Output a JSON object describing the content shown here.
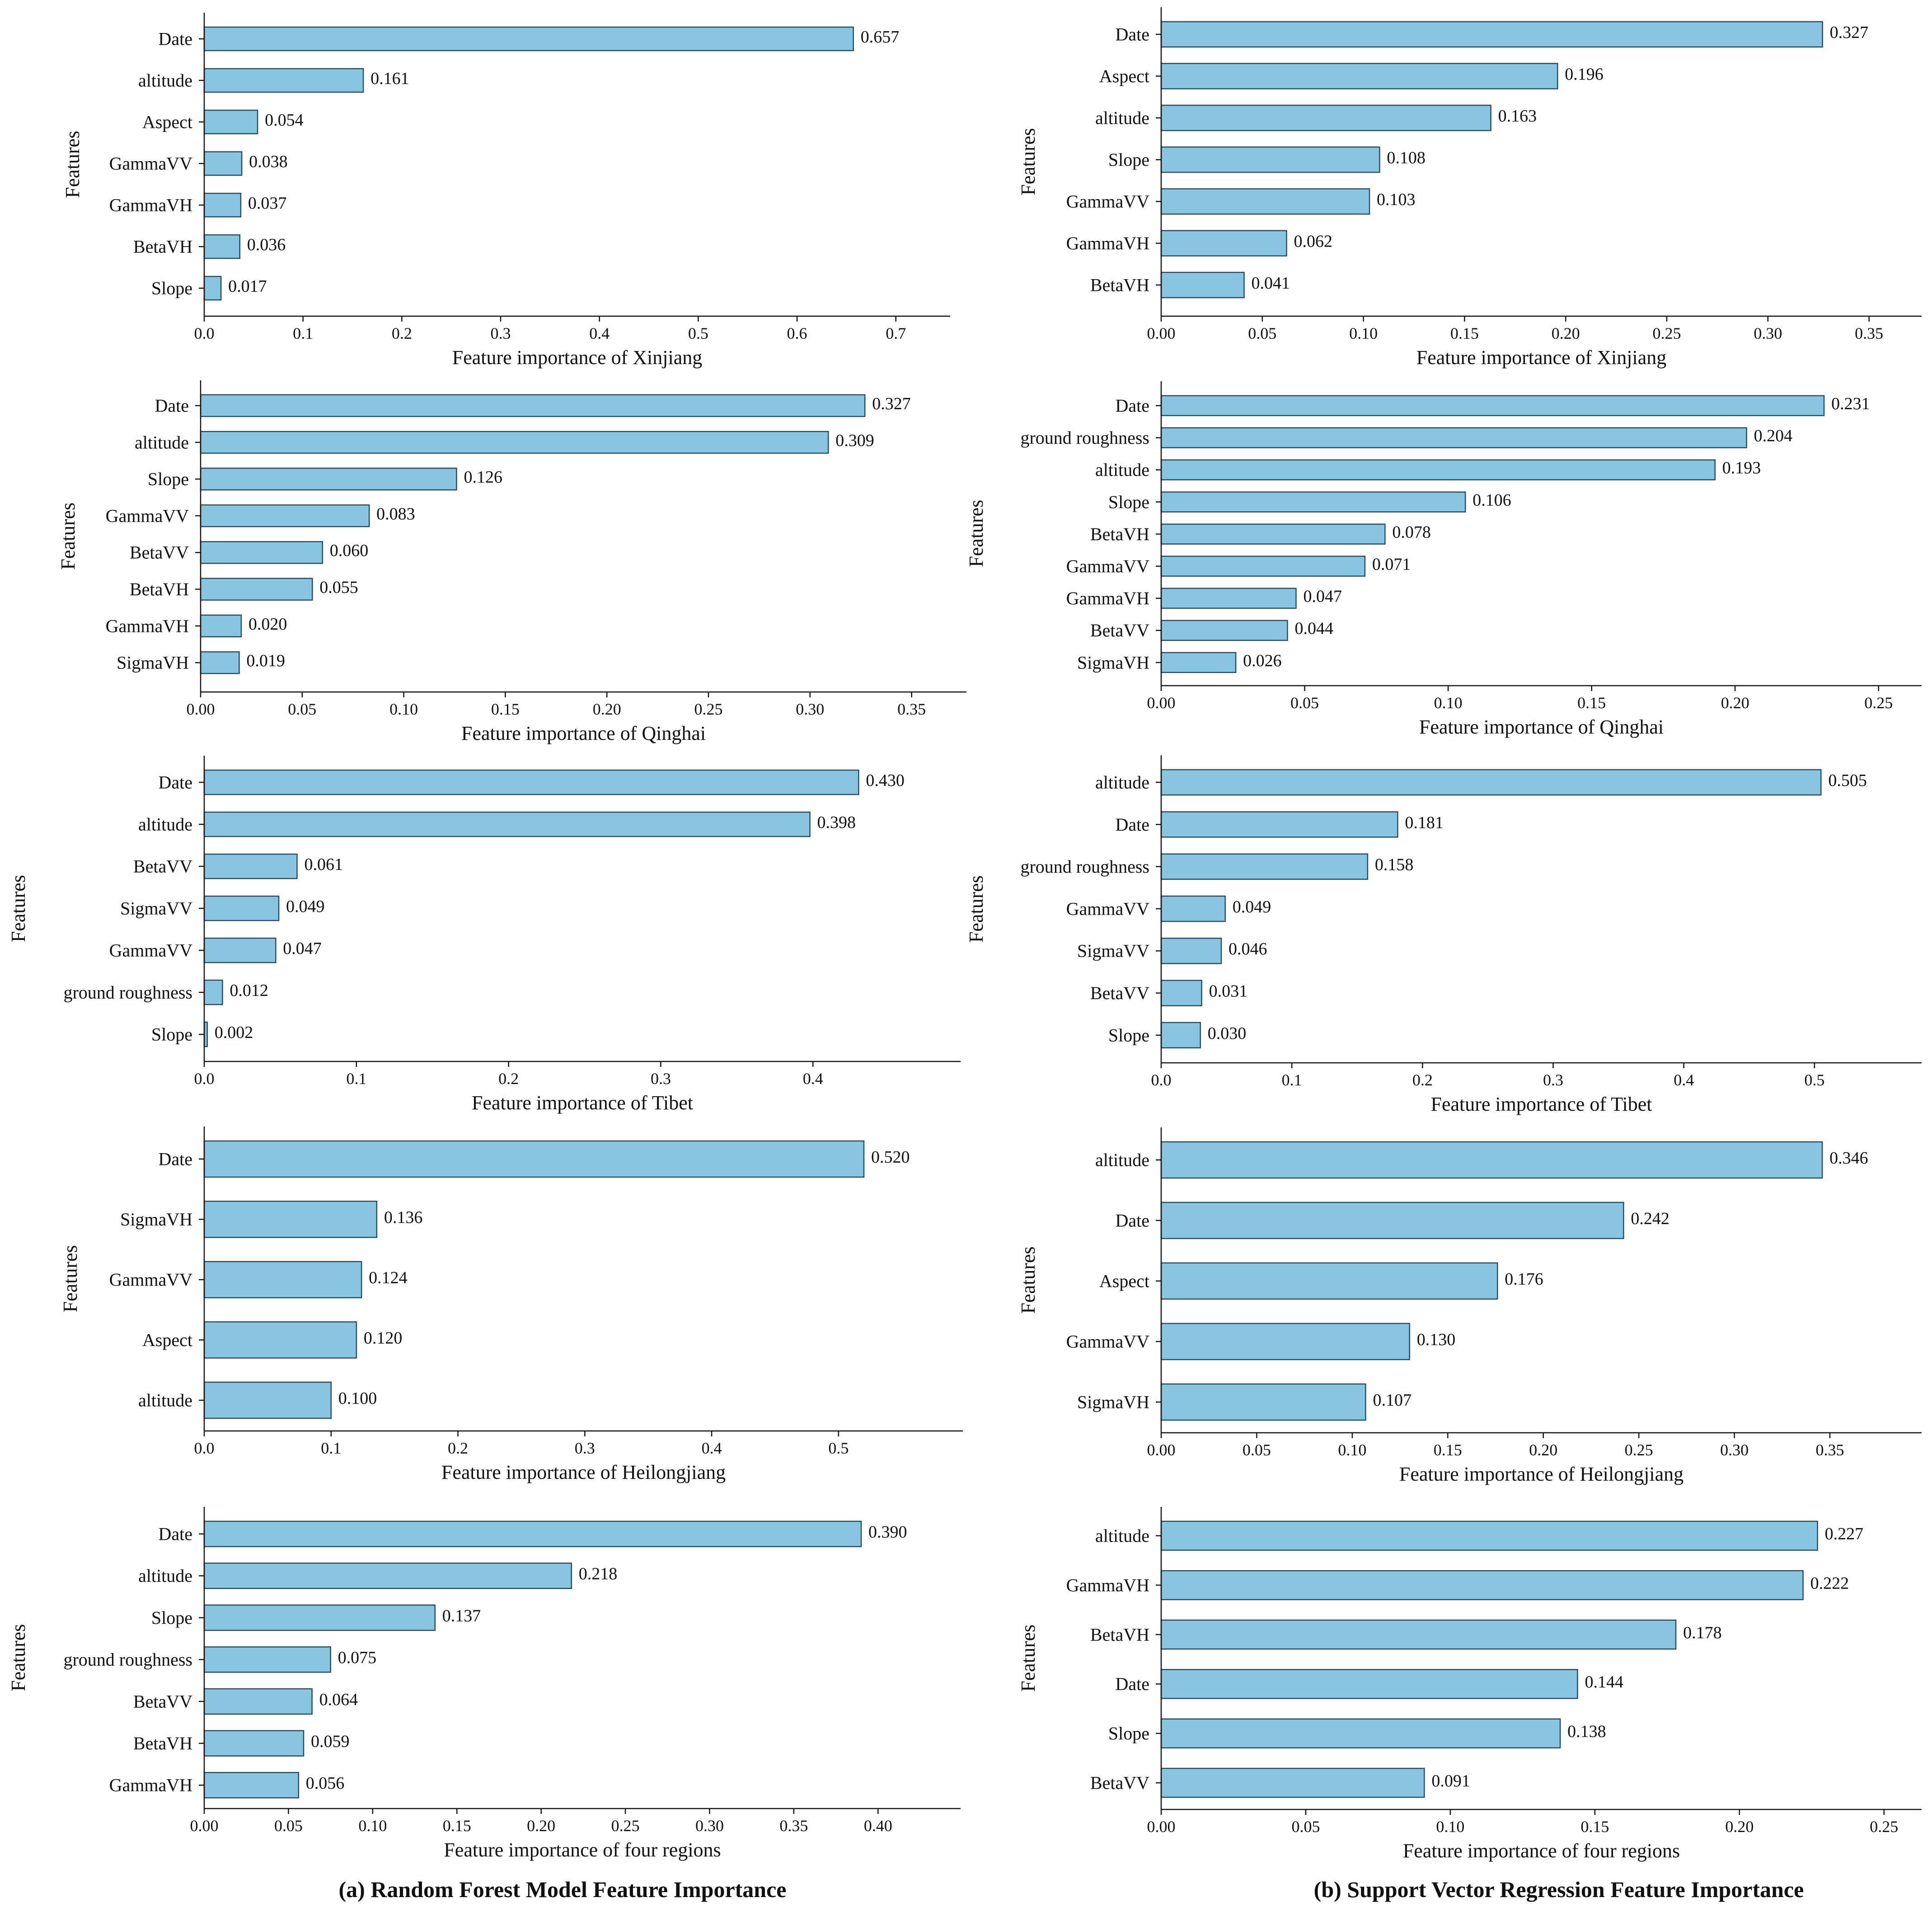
{
  "figure": {
    "caption_a": "(a) Random Forest Model Feature Importance",
    "caption_b": "(b) Support Vector Regression Feature Importance",
    "bar_color": "#87c5e3",
    "bar_edge_color": "#2b4a5c",
    "ylabel": "Features"
  },
  "chart_data": [
    {
      "type": "bar",
      "orientation": "horizontal",
      "model": "Random Forest",
      "xlabel": "Feature importance of Xinjiang",
      "ylabel": "Features",
      "categories": [
        "Date",
        "altitude",
        "Aspect",
        "GammaVV",
        "GammaVH",
        "BetaVH",
        "Slope"
      ],
      "values": [
        0.657,
        0.161,
        0.054,
        0.038,
        0.037,
        0.036,
        0.017
      ],
      "value_labels": [
        "0.657",
        "0.161",
        "0.054",
        "0.038",
        "0.037",
        "0.036",
        "0.017"
      ],
      "xlim": [
        0,
        0.755
      ],
      "xticks": [
        0,
        0.1,
        0.2,
        0.3,
        0.4,
        0.5,
        0.6,
        0.7
      ],
      "xtick_labels": [
        "0.0",
        "0.1",
        "0.2",
        "0.3",
        "0.4",
        "0.5",
        "0.6",
        "0.7"
      ]
    },
    {
      "type": "bar",
      "orientation": "horizontal",
      "model": "Support Vector Regression",
      "xlabel": "Feature importance of Xinjiang",
      "ylabel": "Features",
      "categories": [
        "Date",
        "Aspect",
        "altitude",
        "Slope",
        "GammaVV",
        "GammaVH",
        "BetaVH"
      ],
      "values": [
        0.327,
        0.196,
        0.163,
        0.108,
        0.103,
        0.062,
        0.041
      ],
      "value_labels": [
        "0.327",
        "0.196",
        "0.163",
        "0.108",
        "0.103",
        "0.062",
        "0.041"
      ],
      "xlim": [
        0,
        0.376
      ],
      "xticks": [
        0,
        0.05,
        0.1,
        0.15,
        0.2,
        0.25,
        0.3,
        0.35
      ],
      "xtick_labels": [
        "0.00",
        "0.05",
        "0.10",
        "0.15",
        "0.20",
        "0.25",
        "0.30",
        "0.35"
      ]
    },
    {
      "type": "bar",
      "orientation": "horizontal",
      "model": "Random Forest",
      "xlabel": "Feature importance of Qinghai",
      "ylabel": "Features",
      "categories": [
        "Date",
        "altitude",
        "Slope",
        "GammaVV",
        "BetaVV",
        "BetaVH",
        "GammaVH",
        "SigmaVH"
      ],
      "values": [
        0.327,
        0.309,
        0.126,
        0.083,
        0.06,
        0.055,
        0.02,
        0.019
      ],
      "value_labels": [
        "0.327",
        "0.309",
        "0.126",
        "0.083",
        "0.060",
        "0.055",
        "0.020",
        "0.019"
      ],
      "xlim": [
        0,
        0.377
      ],
      "xticks": [
        0,
        0.05,
        0.1,
        0.15,
        0.2,
        0.25,
        0.3,
        0.35
      ],
      "xtick_labels": [
        "0.00",
        "0.05",
        "0.10",
        "0.15",
        "0.20",
        "0.25",
        "0.30",
        "0.35"
      ]
    },
    {
      "type": "bar",
      "orientation": "horizontal",
      "model": "Support Vector Regression",
      "xlabel": "Feature importance of Qinghai",
      "ylabel": "Features",
      "categories": [
        "Date",
        "ground roughness",
        "altitude",
        "Slope",
        "BetaVH",
        "GammaVV",
        "GammaVH",
        "BetaVV",
        "SigmaVH"
      ],
      "values": [
        0.231,
        0.204,
        0.193,
        0.106,
        0.078,
        0.071,
        0.047,
        0.044,
        0.026
      ],
      "value_labels": [
        "0.231",
        "0.204",
        "0.193",
        "0.106",
        "0.078",
        "0.071",
        "0.047",
        "0.044",
        "0.026"
      ],
      "xlim": [
        0,
        0.265
      ],
      "xticks": [
        0,
        0.05,
        0.1,
        0.15,
        0.2,
        0.25
      ],
      "xtick_labels": [
        "0.00",
        "0.05",
        "0.10",
        "0.15",
        "0.20",
        "0.25"
      ]
    },
    {
      "type": "bar",
      "orientation": "horizontal",
      "model": "Random Forest",
      "xlabel": "Feature importance of Tibet",
      "ylabel": "Features",
      "categories": [
        "Date",
        "altitude",
        "BetaVV",
        "SigmaVV",
        "GammaVV",
        "ground roughness",
        "Slope"
      ],
      "values": [
        0.43,
        0.398,
        0.061,
        0.049,
        0.047,
        0.012,
        0.002
      ],
      "value_labels": [
        "0.430",
        "0.398",
        "0.061",
        "0.049",
        "0.047",
        "0.012",
        "0.002"
      ],
      "xlim": [
        0,
        0.497
      ],
      "xticks": [
        0,
        0.1,
        0.2,
        0.3,
        0.4
      ],
      "xtick_labels": [
        "0.0",
        "0.1",
        "0.2",
        "0.3",
        "0.4"
      ]
    },
    {
      "type": "bar",
      "orientation": "horizontal",
      "model": "Support Vector Regression",
      "xlabel": "Feature importance of Tibet",
      "ylabel": "Features",
      "categories": [
        "altitude",
        "Date",
        "ground roughness",
        "GammaVV",
        "SigmaVV",
        "BetaVV",
        "Slope"
      ],
      "values": [
        0.505,
        0.181,
        0.158,
        0.049,
        0.046,
        0.031,
        0.03
      ],
      "value_labels": [
        "0.505",
        "0.181",
        "0.158",
        "0.049",
        "0.046",
        "0.031",
        "0.030"
      ],
      "xlim": [
        0,
        0.582
      ],
      "xticks": [
        0,
        0.1,
        0.2,
        0.3,
        0.4,
        0.5
      ],
      "xtick_labels": [
        "0.0",
        "0.1",
        "0.2",
        "0.3",
        "0.4",
        "0.5"
      ]
    },
    {
      "type": "bar",
      "orientation": "horizontal",
      "model": "Random Forest",
      "xlabel": "Feature importance of Heilongjiang",
      "ylabel": "Features",
      "categories": [
        "Date",
        "SigmaVH",
        "GammaVV",
        "Aspect",
        "altitude"
      ],
      "values": [
        0.52,
        0.136,
        0.124,
        0.12,
        0.1
      ],
      "value_labels": [
        "0.520",
        "0.136",
        "0.124",
        "0.120",
        "0.100"
      ],
      "xlim": [
        0,
        0.598
      ],
      "xticks": [
        0,
        0.1,
        0.2,
        0.3,
        0.4,
        0.5
      ],
      "xtick_labels": [
        "0.0",
        "0.1",
        "0.2",
        "0.3",
        "0.4",
        "0.5"
      ]
    },
    {
      "type": "bar",
      "orientation": "horizontal",
      "model": "Support Vector Regression",
      "xlabel": "Feature importance of Heilongjiang",
      "ylabel": "Features",
      "categories": [
        "altitude",
        "Date",
        "Aspect",
        "GammaVV",
        "SigmaVH"
      ],
      "values": [
        0.346,
        0.242,
        0.176,
        0.13,
        0.107
      ],
      "value_labels": [
        "0.346",
        "0.242",
        "0.176",
        "0.130",
        "0.107"
      ],
      "xlim": [
        0,
        0.398
      ],
      "xticks": [
        0,
        0.05,
        0.1,
        0.15,
        0.2,
        0.25,
        0.3,
        0.35
      ],
      "xtick_labels": [
        "0.00",
        "0.05",
        "0.10",
        "0.15",
        "0.20",
        "0.25",
        "0.30",
        "0.35"
      ]
    },
    {
      "type": "bar",
      "orientation": "horizontal",
      "model": "Random Forest",
      "xlabel": "Feature importance of four regions",
      "ylabel": "Features",
      "categories": [
        "Date",
        "altitude",
        "Slope",
        "ground roughness",
        "BetaVV",
        "BetaVH",
        "GammaVH"
      ],
      "values": [
        0.39,
        0.218,
        0.137,
        0.075,
        0.064,
        0.059,
        0.056
      ],
      "value_labels": [
        "0.390",
        "0.218",
        "0.137",
        "0.075",
        "0.064",
        "0.059",
        "0.056"
      ],
      "xlim": [
        0,
        0.449
      ],
      "xticks": [
        0,
        0.05,
        0.1,
        0.15,
        0.2,
        0.25,
        0.3,
        0.35,
        0.4
      ],
      "xtick_labels": [
        "0.00",
        "0.05",
        "0.10",
        "0.15",
        "0.20",
        "0.25",
        "0.30",
        "0.35",
        "0.40"
      ]
    },
    {
      "type": "bar",
      "orientation": "horizontal",
      "model": "Support Vector Regression",
      "xlabel": "Feature importance of four regions",
      "ylabel": "Features",
      "categories": [
        "altitude",
        "GammaVH",
        "BetaVH",
        "Date",
        "Slope",
        "BetaVV"
      ],
      "values": [
        0.227,
        0.222,
        0.178,
        0.144,
        0.138,
        0.091
      ],
      "value_labels": [
        "0.227",
        "0.222",
        "0.178",
        "0.144",
        "0.138",
        "0.091"
      ],
      "xlim": [
        0,
        0.263
      ],
      "xticks": [
        0,
        0.05,
        0.1,
        0.15,
        0.2,
        0.25
      ],
      "xtick_labels": [
        "0.00",
        "0.05",
        "0.10",
        "0.15",
        "0.20",
        "0.25"
      ]
    }
  ]
}
